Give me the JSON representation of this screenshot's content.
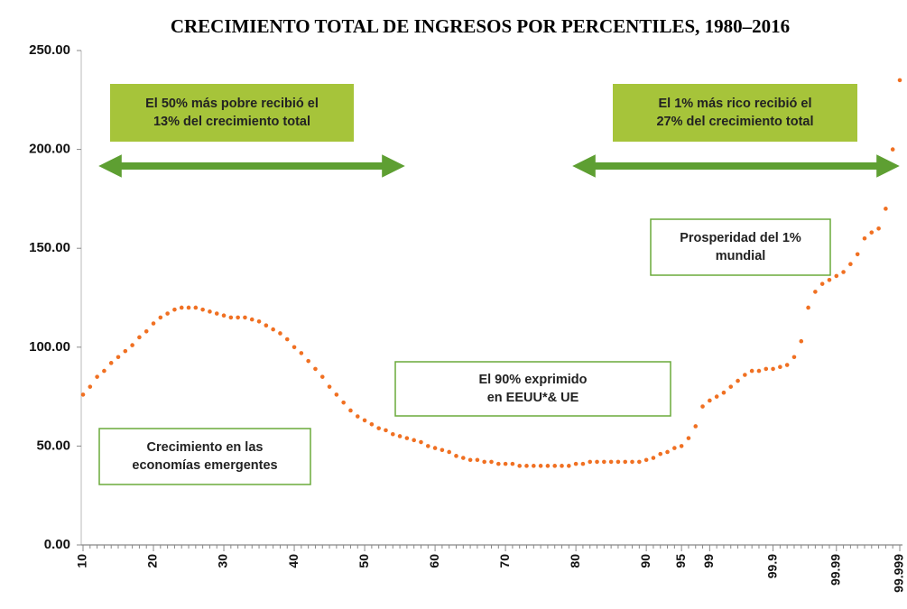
{
  "chart_data": {
    "type": "scatter",
    "title": "CRECIMIENTO TOTAL DE INGRESOS POR PERCENTILES, 1980–2016",
    "color": "#f07022",
    "categories": [
      "10",
      null,
      null,
      null,
      null,
      null,
      null,
      null,
      null,
      null,
      "20",
      null,
      null,
      null,
      null,
      null,
      null,
      null,
      null,
      null,
      "30",
      null,
      null,
      null,
      null,
      null,
      null,
      null,
      null,
      null,
      "40",
      null,
      null,
      null,
      null,
      null,
      null,
      null,
      null,
      null,
      "50",
      null,
      null,
      null,
      null,
      null,
      null,
      null,
      null,
      null,
      "60",
      null,
      null,
      null,
      null,
      null,
      null,
      null,
      null,
      null,
      "70",
      null,
      null,
      null,
      null,
      null,
      null,
      null,
      null,
      null,
      "80",
      null,
      null,
      null,
      null,
      null,
      null,
      null,
      null,
      null,
      "90",
      null,
      null,
      null,
      null,
      "95",
      null,
      null,
      null,
      "99",
      null,
      null,
      null,
      null,
      null,
      null,
      null,
      null,
      "99.9",
      null,
      null,
      null,
      null,
      null,
      null,
      null,
      null,
      "99.99",
      null,
      null,
      null,
      null,
      null,
      null,
      null,
      null,
      "99.999"
    ],
    "values": [
      76,
      80,
      85,
      88,
      92,
      95,
      98,
      101,
      105,
      108,
      112,
      115,
      117,
      119,
      120,
      120,
      120,
      119,
      118,
      117,
      116,
      115,
      115,
      115,
      114,
      113,
      111,
      109,
      107,
      104,
      100,
      97,
      93,
      89,
      85,
      80,
      76,
      72,
      68,
      65,
      63,
      61,
      59,
      58,
      56,
      55,
      54,
      53,
      52,
      50,
      49,
      48,
      47,
      45,
      44,
      43,
      43,
      42,
      42,
      41,
      41,
      41,
      40,
      40,
      40,
      40,
      40,
      40,
      40,
      40,
      41,
      41,
      42,
      42,
      42,
      42,
      42,
      42,
      42,
      42,
      43,
      44,
      46,
      47,
      49,
      50,
      54,
      60,
      70,
      73,
      75,
      77,
      80,
      83,
      86,
      88,
      88,
      89,
      89,
      90,
      91,
      95,
      103,
      120,
      128,
      132,
      134,
      136,
      138,
      142,
      147,
      155,
      158,
      160,
      170,
      200,
      235
    ],
    "ylim": [
      0,
      250
    ],
    "yticks": [
      {
        "value": 0,
        "label": "0.00"
      },
      {
        "value": 50,
        "label": "50.00"
      },
      {
        "value": 100,
        "label": "100.00"
      },
      {
        "value": 150,
        "label": "150.00"
      },
      {
        "value": 200,
        "label": "200.00"
      },
      {
        "value": 250,
        "label": "250.00"
      }
    ],
    "annotations": [
      {
        "lines": [
          "El 50% más pobre recibió el",
          "13% del crecimiento total"
        ]
      },
      {
        "lines": [
          "El 1% más rico recibió el",
          "27% del crecimiento total"
        ]
      },
      {
        "lines": [
          "Prosperidad del 1%",
          "mundial"
        ]
      },
      {
        "lines": [
          "El 90% exprimido",
          "en EEUU*& UE"
        ]
      },
      {
        "lines": [
          "Crecimiento en las",
          "economías emergentes"
        ]
      }
    ]
  }
}
